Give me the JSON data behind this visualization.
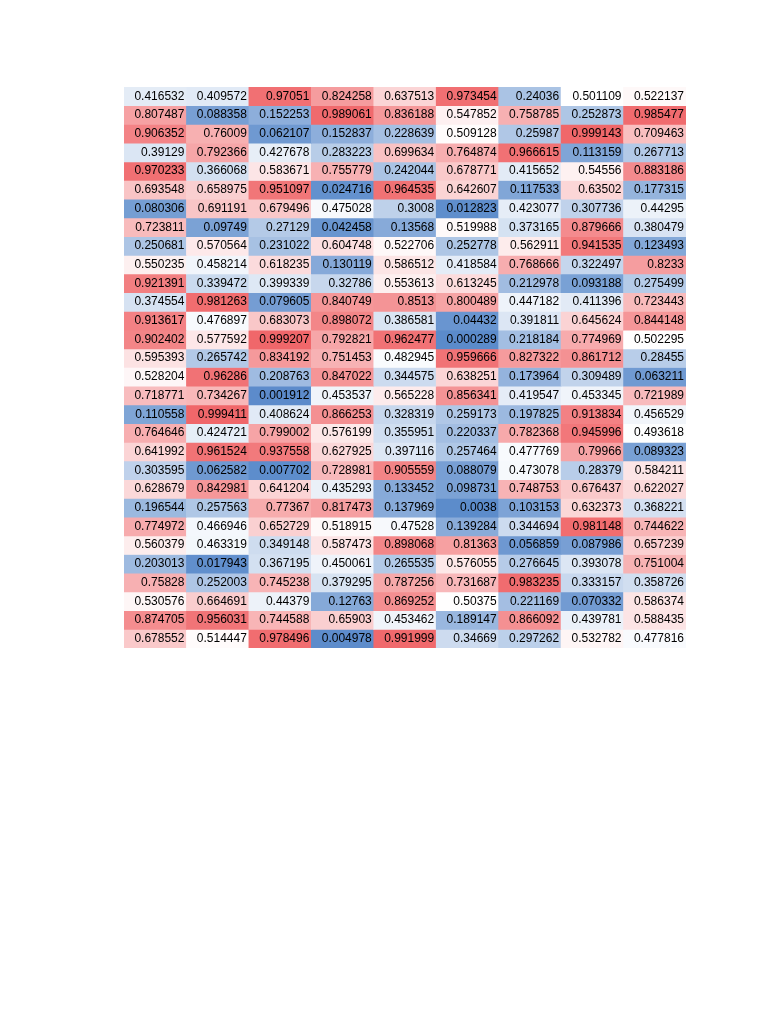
{
  "chart_data": {
    "type": "heatmap",
    "categories": [
      null,
      null,
      null,
      null,
      null,
      null,
      null,
      null,
      null
    ],
    "y_categories": [
      null,
      null,
      null,
      null,
      null,
      null,
      null,
      null,
      null,
      null,
      null,
      null,
      null,
      null,
      null,
      null,
      null,
      null,
      null,
      null,
      null,
      null,
      null,
      null,
      null,
      null,
      null,
      null,
      null,
      null
    ],
    "colors": [
      "#5b8bcb",
      "#ffffff",
      "#f0676a"
    ],
    "data_labels": true,
    "cells": [
      [
        0.416532,
        0.409572,
        0.97051,
        0.824258,
        0.637513,
        0.973454,
        0.24036,
        0.501109,
        0.522137
      ],
      [
        0.807487,
        0.088358,
        0.152253,
        0.989061,
        0.836188,
        0.547852,
        0.758785,
        0.252873,
        0.985477
      ],
      [
        0.906352,
        0.76009,
        0.062107,
        0.152837,
        0.228639,
        0.509128,
        0.25987,
        0.999143,
        0.709463
      ],
      [
        0.39129,
        0.792366,
        0.427678,
        0.283223,
        0.699634,
        0.764874,
        0.966615,
        0.113159,
        0.267713
      ],
      [
        0.970233,
        0.366068,
        0.583671,
        0.755779,
        0.242044,
        0.678771,
        0.415652,
        0.54556,
        0.883186
      ],
      [
        0.693548,
        0.658975,
        0.951097,
        0.024716,
        0.964535,
        0.642607,
        0.117533,
        0.63502,
        0.177315
      ],
      [
        0.080306,
        0.691191,
        0.679496,
        0.475028,
        0.3008,
        0.012823,
        0.423077,
        0.307736,
        0.44295
      ],
      [
        0.723811,
        0.09749,
        0.27129,
        0.042458,
        0.13568,
        0.519988,
        0.373165,
        0.879666,
        0.380479
      ],
      [
        0.250681,
        0.570564,
        0.231022,
        0.604748,
        0.522706,
        0.252778,
        0.562911,
        0.941535,
        0.123493
      ],
      [
        0.550235,
        0.458214,
        0.618235,
        0.130119,
        0.586512,
        0.418584,
        0.768666,
        0.322497,
        0.8233
      ],
      [
        0.921391,
        0.339472,
        0.399339,
        0.32786,
        0.553613,
        0.613245,
        0.212978,
        0.093188,
        0.275499
      ],
      [
        0.374554,
        0.981263,
        0.079605,
        0.840749,
        0.8513,
        0.800489,
        0.447182,
        0.411396,
        0.723443
      ],
      [
        0.913617,
        0.476897,
        0.683073,
        0.898072,
        0.386581,
        0.04432,
        0.391811,
        0.645624,
        0.844148
      ],
      [
        0.902402,
        0.577592,
        0.999207,
        0.792821,
        0.962477,
        0.000289,
        0.218184,
        0.774969,
        0.502295
      ],
      [
        0.595393,
        0.265742,
        0.834192,
        0.751453,
        0.482945,
        0.959666,
        0.827322,
        0.861712,
        0.28455
      ],
      [
        0.528204,
        0.96286,
        0.208763,
        0.847022,
        0.344575,
        0.638251,
        0.173964,
        0.309489,
        0.063211
      ],
      [
        0.718771,
        0.734267,
        0.001912,
        0.453537,
        0.565228,
        0.856341,
        0.419547,
        0.453345,
        0.721989
      ],
      [
        0.110558,
        0.999411,
        0.408624,
        0.866253,
        0.328319,
        0.259173,
        0.197825,
        0.913834,
        0.456529
      ],
      [
        0.764646,
        0.424721,
        0.799002,
        0.576199,
        0.355951,
        0.220337,
        0.782368,
        0.945996,
        0.493618
      ],
      [
        0.641992,
        0.961524,
        0.937558,
        0.627925,
        0.397116,
        0.257464,
        0.477769,
        0.79966,
        0.089323
      ],
      [
        0.303595,
        0.062582,
        0.007702,
        0.728981,
        0.905559,
        0.088079,
        0.473078,
        0.28379,
        0.584211
      ],
      [
        0.628679,
        0.842981,
        0.641204,
        0.435293,
        0.133452,
        0.098731,
        0.748753,
        0.676437,
        0.622027
      ],
      [
        0.196544,
        0.257563,
        0.77367,
        0.817473,
        0.137969,
        0.0038,
        0.103153,
        0.632373,
        0.368221
      ],
      [
        0.774972,
        0.466946,
        0.652729,
        0.518915,
        0.47528,
        0.139284,
        0.344694,
        0.981148,
        0.744622
      ],
      [
        0.560379,
        0.463319,
        0.349148,
        0.587473,
        0.898068,
        0.81363,
        0.056859,
        0.087986,
        0.657239
      ],
      [
        0.203013,
        0.017943,
        0.367195,
        0.450061,
        0.265535,
        0.576055,
        0.276645,
        0.393078,
        0.751004
      ],
      [
        0.75828,
        0.252003,
        0.745238,
        0.379295,
        0.787256,
        0.731687,
        0.983235,
        0.333157,
        0.358726
      ],
      [
        0.530576,
        0.664691,
        0.44379,
        0.12763,
        0.869252,
        0.50375,
        0.221169,
        0.070332,
        0.586374
      ],
      [
        0.874705,
        0.956031,
        0.744588,
        0.65903,
        0.453462,
        0.189147,
        0.866092,
        0.439781,
        0.588435
      ],
      [
        0.678552,
        0.514447,
        0.978496,
        0.004978,
        0.991999,
        0.34669,
        0.297262,
        0.532782,
        0.477816
      ]
    ]
  }
}
